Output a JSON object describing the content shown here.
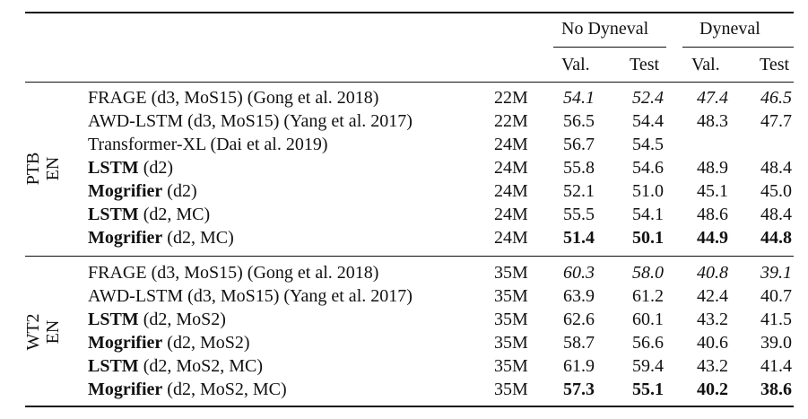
{
  "header": {
    "group_no": "No Dyneval",
    "group_dyn": "Dyneval",
    "val": "Val.",
    "test": "Test"
  },
  "sections": [
    {
      "dataset_line1": "PTB",
      "dataset_line2": "EN",
      "rows": [
        {
          "name": "FRAGE",
          "rest": " (d3, MoS15) (Gong et al. 2018)",
          "bold_name": false,
          "params": "22M",
          "v1": "54.1",
          "t1": "52.4",
          "v2": "47.4",
          "t2": "46.5",
          "style": "italic"
        },
        {
          "name": "AWD-LSTM",
          "rest": " (d3, MoS15) (Yang et al. 2017)",
          "bold_name": false,
          "params": "22M",
          "v1": "56.5",
          "t1": "54.4",
          "v2": "48.3",
          "t2": "47.7",
          "style": "normal"
        },
        {
          "name": "Transformer-XL",
          "rest": " (Dai et al. 2019)",
          "bold_name": false,
          "params": "24M",
          "v1": "56.7",
          "t1": "54.5",
          "v2": "",
          "t2": "",
          "style": "normal"
        },
        {
          "name": "LSTM",
          "rest": " (d2)",
          "bold_name": true,
          "params": "24M",
          "v1": "55.8",
          "t1": "54.6",
          "v2": "48.9",
          "t2": "48.4",
          "style": "normal"
        },
        {
          "name": "Mogrifier",
          "rest": " (d2)",
          "bold_name": true,
          "params": "24M",
          "v1": "52.1",
          "t1": "51.0",
          "v2": "45.1",
          "t2": "45.0",
          "style": "normal"
        },
        {
          "name": "LSTM",
          "rest": " (d2, MC)",
          "bold_name": true,
          "params": "24M",
          "v1": "55.5",
          "t1": "54.1",
          "v2": "48.6",
          "t2": "48.4",
          "style": "normal"
        },
        {
          "name": "Mogrifier",
          "rest": " (d2, MC)",
          "bold_name": true,
          "params": "24M",
          "v1": "51.4",
          "t1": "50.1",
          "v2": "44.9",
          "t2": "44.8",
          "style": "bold"
        }
      ]
    },
    {
      "dataset_line1": "WT2",
      "dataset_line2": "EN",
      "rows": [
        {
          "name": "FRAGE",
          "rest": " (d3, MoS15) (Gong et al. 2018)",
          "bold_name": false,
          "params": "35M",
          "v1": "60.3",
          "t1": "58.0",
          "v2": "40.8",
          "t2": "39.1",
          "style": "italic"
        },
        {
          "name": "AWD-LSTM",
          "rest": " (d3, MoS15) (Yang et al. 2017)",
          "bold_name": false,
          "params": "35M",
          "v1": "63.9",
          "t1": "61.2",
          "v2": "42.4",
          "t2": "40.7",
          "style": "normal"
        },
        {
          "name": "LSTM",
          "rest": " (d2, MoS2)",
          "bold_name": true,
          "params": "35M",
          "v1": "62.6",
          "t1": "60.1",
          "v2": "43.2",
          "t2": "41.5",
          "style": "normal"
        },
        {
          "name": "Mogrifier",
          "rest": " (d2, MoS2)",
          "bold_name": true,
          "params": "35M",
          "v1": "58.7",
          "t1": "56.6",
          "v2": "40.6",
          "t2": "39.0",
          "style": "normal"
        },
        {
          "name": "LSTM",
          "rest": " (d2, MoS2, MC)",
          "bold_name": true,
          "params": "35M",
          "v1": "61.9",
          "t1": "59.4",
          "v2": "43.2",
          "t2": "41.4",
          "style": "normal"
        },
        {
          "name": "Mogrifier",
          "rest": " (d2, MoS2, MC)",
          "bold_name": true,
          "params": "35M",
          "v1": "57.3",
          "t1": "55.1",
          "v2": "40.2",
          "t2": "38.6",
          "style": "bold"
        }
      ]
    }
  ]
}
